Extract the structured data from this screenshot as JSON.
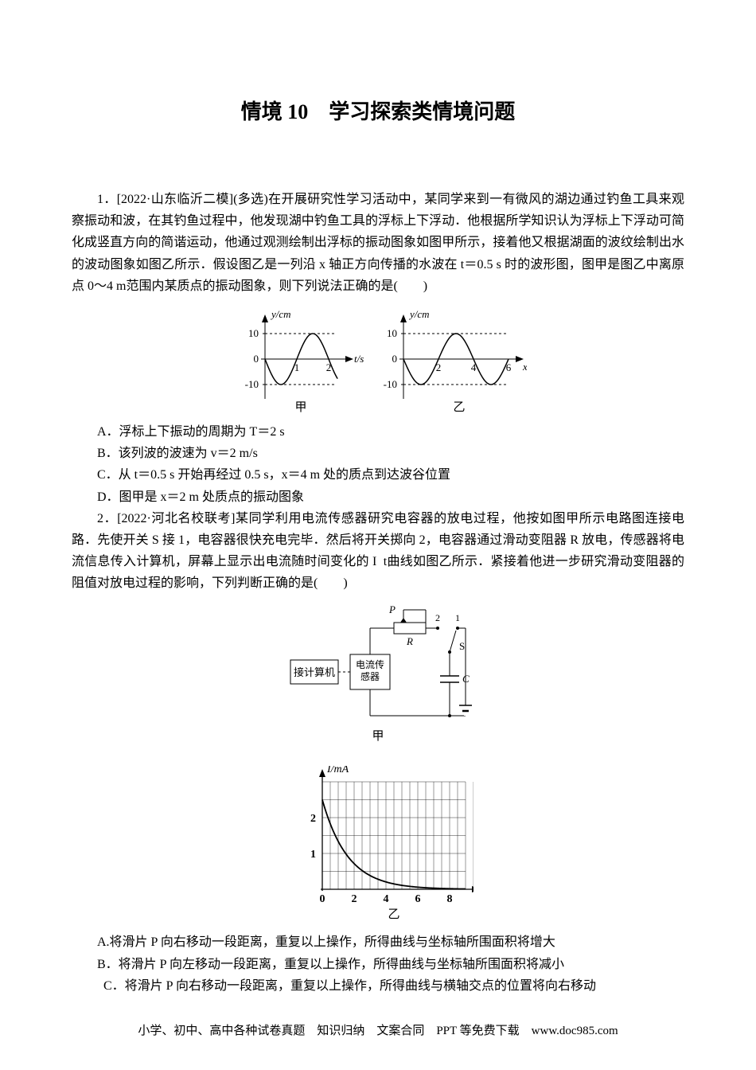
{
  "title": "情境 10　学习探索类情境问题",
  "q1": {
    "lead": "1．[2022·山东临沂二模](多选)在开展研究性学习活动中，某同学来到一有微风的湖边通过钓鱼工具来观察振动和波，在其钓鱼过程中，他发现湖中钓鱼工具的浮标上下浮动．他根据所学知识认为浮标上下浮动可简化成竖直方向的简谐运动，他通过观测绘制出浮标的振动图象如图甲所示，接着他又根据湖面的波纹绘制出水的波动图象如图乙所示．假设图乙是一列沿 x 轴正方向传播的水波在 t＝0.5 s 时的波形图，图甲是图乙中离原点 0～4 m范围内某质点的振动图象，则下列说法正确的是(　　)",
    "optionA": "A．浮标上下振动的周期为 T＝2 s",
    "optionB": "B．该列波的波速为 v＝2 m/s",
    "optionC": "C．从 t＝0.5 s 开始再经过 0.5 s，x＝4 m 处的质点到达波谷位置",
    "optionD": "D．图甲是 x＝2 m 处质点的振动图象",
    "chart1": {
      "ylabel": "y/cm",
      "xlabel": "t/s",
      "sub": "甲",
      "yticks": [
        10,
        0,
        -10
      ],
      "xticks": [
        1,
        2
      ],
      "axis_color": "#000000",
      "curve_color": "#000000",
      "amplitude": 10,
      "period": 2
    },
    "chart2": {
      "ylabel": "y/cm",
      "xlabel": "x/m",
      "sub": "乙",
      "yticks": [
        10,
        0,
        -10
      ],
      "xticks": [
        2,
        4,
        6
      ],
      "axis_color": "#000000",
      "curve_color": "#000000",
      "amplitude": 10,
      "wavelength": 4
    }
  },
  "q2": {
    "lead": "2．[2022·河北名校联考]某同学利用电流传感器研究电容器的放电过程，他按如图甲所示电路图连接电路．先使开关 S 接 1，电容器很快充电完毕．然后将开关掷向 2，电容器通过滑动变阻器 R 放电，传感器将电流信息传入计算机，屏幕上显示出电流随时间变化的 I ­ t曲线如图乙所示．紧接着他进一步研究滑动变阻器的阻值对放电过程的影响，下列判断正确的是(　　)",
    "circuit": {
      "label_computer": "接计算机",
      "label_sensor": "电流传感器",
      "label_R": "R",
      "label_P": "P",
      "label_S": "S",
      "label_C": "C",
      "label_1": "1",
      "label_2": "2",
      "sub": "甲",
      "line_color": "#000000"
    },
    "decay": {
      "ylabel": "I/mA",
      "xlabel": "t/s",
      "sub": "乙",
      "yticks": [
        1,
        2
      ],
      "xticks": [
        0,
        2,
        4,
        6,
        8
      ],
      "grid_color": "#000000",
      "curve_color": "#000000",
      "i0": 2.5,
      "tau": 1.6
    },
    "optionA": "A.将滑片 P 向右移动一段距离，重复以上操作，所得曲线与坐标轴所围面积将增大",
    "optionB": "B．将滑片 P 向左移动一段距离，重复以上操作，所得曲线与坐标轴所围面积将减小",
    "optionC": "C．将滑片 P 向右移动一段距离，重复以上操作，所得曲线与横轴交点的位置将向右移动"
  },
  "footer": "小学、初中、高中各种试卷真题　知识归纳　文案合同　PPT 等免费下载　www.doc985.com"
}
